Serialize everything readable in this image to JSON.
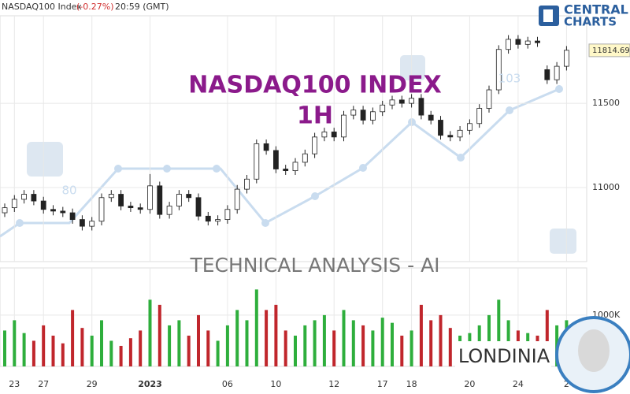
{
  "chart_data": [
    {
      "type": "candlestick",
      "title": "NASDAQ100 Index",
      "change": "(-0.27%)",
      "time": "20:59 (GMT)",
      "watermark_title": "NASDAQ100 INDEX",
      "watermark_subtitle": "1H",
      "watermark_center": "TECHNICAL  ANALYSIS - AI",
      "watermark_numbers": [
        "80",
        "103"
      ],
      "brand": "LONDINIA",
      "logo": [
        "CENTRAL",
        "CHARTS"
      ],
      "last_price": 11814.69,
      "up_color": "#ffffff",
      "down_color": "#222222",
      "last_price_color": "#fff8c8",
      "categories": [
        null,
        "23",
        null,
        null,
        "27",
        null,
        null,
        null,
        null,
        "29",
        null,
        null,
        null,
        null,
        null,
        "2023",
        null,
        null,
        null,
        null,
        null,
        null,
        null,
        "06",
        null,
        null,
        null,
        null,
        "10",
        null,
        null,
        null,
        null,
        null,
        "12",
        null,
        null,
        null,
        null,
        "17",
        null,
        null,
        "18",
        null,
        null,
        null,
        null,
        null,
        "20",
        null,
        null,
        null,
        null,
        "24",
        null,
        null,
        null,
        null,
        "2"
      ],
      "open": [
        10850,
        10880,
        10930,
        10960,
        10920,
        10870,
        10860,
        10850,
        10810,
        10770,
        10800,
        10940,
        10960,
        10890,
        10880,
        10870,
        11010,
        10840,
        10890,
        10960,
        10940,
        10830,
        10800,
        10810,
        10870,
        10990,
        11050,
        11260,
        11220,
        11110,
        11100,
        11150,
        11200,
        11300,
        11330,
        11300,
        11430,
        11460,
        11400,
        11450,
        11490,
        11520,
        11500,
        11530,
        11430,
        11400,
        11310,
        11300,
        11340,
        11380,
        11470,
        11580,
        11820,
        11880,
        11850,
        11870,
        11700,
        11640,
        11720
      ],
      "high": [
        10905,
        10955,
        10985,
        10985,
        10945,
        10895,
        10885,
        10875,
        10835,
        10825,
        10965,
        10985,
        10985,
        10915,
        10905,
        11080,
        11035,
        10915,
        10985,
        10985,
        10965,
        10855,
        10835,
        10895,
        11015,
        11075,
        11285,
        11285,
        11245,
        11135,
        11175,
        11225,
        11325,
        11355,
        11355,
        11455,
        11485,
        11485,
        11475,
        11515,
        11545,
        11545,
        11555,
        11555,
        11455,
        11425,
        11335,
        11365,
        11405,
        11495,
        11605,
        11845,
        11905,
        11905,
        11895,
        11895,
        11725,
        11745,
        11840
      ],
      "low": [
        10825,
        10855,
        10905,
        10895,
        10845,
        10835,
        10825,
        10785,
        10745,
        10745,
        10775,
        10915,
        10865,
        10855,
        10845,
        10845,
        10815,
        10815,
        10865,
        10915,
        10805,
        10775,
        10775,
        10785,
        10845,
        10965,
        11025,
        11195,
        11085,
        11075,
        11075,
        11125,
        11175,
        11275,
        11275,
        11275,
        11405,
        11375,
        11375,
        11425,
        11465,
        11475,
        11475,
        11405,
        11375,
        11285,
        11275,
        11275,
        11315,
        11355,
        11445,
        11555,
        11795,
        11825,
        11825,
        11835,
        11615,
        11615,
        11695
      ],
      "close": [
        10880,
        10930,
        10960,
        10920,
        10870,
        10860,
        10850,
        10810,
        10770,
        10800,
        10940,
        10960,
        10890,
        10880,
        10870,
        11010,
        10840,
        10890,
        10960,
        10940,
        10830,
        10800,
        10810,
        10870,
        10990,
        11050,
        11260,
        11220,
        11110,
        11100,
        11150,
        11200,
        11300,
        11330,
        11300,
        11430,
        11460,
        11400,
        11450,
        11490,
        11520,
        11500,
        11530,
        11430,
        11400,
        11310,
        11300,
        11340,
        11380,
        11470,
        11580,
        11820,
        11880,
        11850,
        11870,
        11860,
        11640,
        11720,
        11815
      ],
      "ylim": [
        10560,
        12020
      ],
      "yticks": [
        11000,
        11500
      ],
      "grid": true
    },
    {
      "type": "bar",
      "up_color": "#2eae3c",
      "down_color": "#c0262c",
      "values": [
        700000,
        900000,
        650000,
        500000,
        800000,
        600000,
        450000,
        1100000,
        750000,
        600000,
        900000,
        500000,
        400000,
        550000,
        700000,
        1300000,
        1200000,
        800000,
        900000,
        600000,
        1000000,
        700000,
        500000,
        800000,
        1100000,
        900000,
        1500000,
        1100000,
        1200000,
        700000,
        600000,
        800000,
        900000,
        1000000,
        700000,
        1100000,
        900000,
        800000,
        700000,
        950000,
        850000,
        600000,
        700000,
        1200000,
        900000,
        1000000,
        750000,
        600000,
        650000,
        800000,
        1000000,
        1300000,
        900000,
        700000,
        650000,
        600000,
        1100000,
        800000,
        900000
      ],
      "ylim": [
        0,
        1920000
      ],
      "yticks": [
        {
          "value": 1000000,
          "label": "1000K"
        }
      ],
      "grid": true
    }
  ]
}
